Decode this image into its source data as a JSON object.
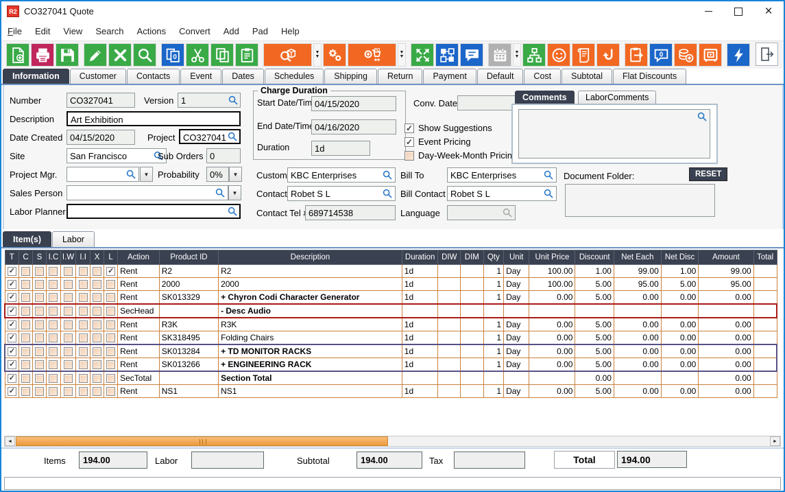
{
  "window": {
    "logo": "R2",
    "title": "CO327041 Quote"
  },
  "menu": [
    "File",
    "Edit",
    "View",
    "Search",
    "Actions",
    "Convert",
    "Add",
    "Pad",
    "Help"
  ],
  "toolbar": {
    "colors": {
      "green": "#3aaa47",
      "crimson": "#c0265c",
      "blue": "#1b66c9",
      "orange": "#f26822",
      "gray": "#b1b1b1"
    },
    "buttons": [
      {
        "icon": "new-document-icon",
        "color": "green"
      },
      {
        "icon": "print-icon",
        "color": "crimson"
      },
      {
        "icon": "save-icon",
        "color": "green"
      },
      {
        "icon": "edit-icon",
        "color": "green",
        "gap": true
      },
      {
        "icon": "delete-icon",
        "color": "green"
      },
      {
        "icon": "search-icon",
        "color": "green"
      },
      {
        "icon": "copy-count-icon",
        "color": "blue",
        "gap": true
      },
      {
        "icon": "cut-icon",
        "color": "green"
      },
      {
        "icon": "copy-icon",
        "color": "green"
      },
      {
        "icon": "paste-icon",
        "color": "green"
      },
      {
        "icon": "search-item-icon",
        "color": "orange",
        "wide": true,
        "gap": true
      },
      {
        "icon": "chevron-down-icon",
        "separator": true
      },
      {
        "icon": "gears-icon",
        "color": "orange"
      },
      {
        "icon": "add-po-cart-icon",
        "color": "orange",
        "wide": true
      },
      {
        "icon": "chevron-down-icon",
        "separator": true
      },
      {
        "icon": "expand-icon",
        "color": "green",
        "gap": true
      },
      {
        "icon": "workflow-icon",
        "color": "blue"
      },
      {
        "icon": "comment-icon",
        "color": "blue"
      },
      {
        "icon": "calendar-icon",
        "color": "gray",
        "gap": true
      },
      {
        "icon": "chevron-down-icon",
        "separator": true
      },
      {
        "icon": "org-chart-icon",
        "color": "green"
      },
      {
        "icon": "smiley-icon",
        "color": "orange"
      },
      {
        "icon": "scroll-icon",
        "color": "orange"
      },
      {
        "icon": "return-icon",
        "color": "orange"
      },
      {
        "icon": "export-icon",
        "color": "orange",
        "gap": true
      },
      {
        "icon": "quote-bubble-icon",
        "color": "blue"
      },
      {
        "icon": "coins-add-icon",
        "color": "orange"
      },
      {
        "icon": "safe-icon",
        "color": "orange"
      },
      {
        "icon": "lightning-icon",
        "color": "blue",
        "gap": true
      }
    ]
  },
  "tabs": {
    "active": "Information",
    "items": [
      "Information",
      "Customer",
      "Contacts",
      "Event",
      "Dates",
      "Schedules",
      "Shipping",
      "Return",
      "Payment",
      "Default",
      "Cost",
      "Subtotal",
      "Flat Discounts"
    ]
  },
  "form": {
    "number_label": "Number",
    "number": "CO327041",
    "version_label": "Version",
    "version": "1",
    "description_label": "Description",
    "description": "Art Exhibition",
    "date_created_label": "Date Created",
    "date_created": "04/15/2020",
    "project_label": "Project",
    "project": "CO327041",
    "site_label": "Site",
    "site": "San Francisco",
    "sub_orders_label": "Sub Orders",
    "sub_orders": "0",
    "project_mgr_label": "Project Mgr.",
    "project_mgr": "",
    "probability_label": "Probability",
    "probability": "0%",
    "sales_person_label": "Sales Person",
    "sales_person": "",
    "labor_planner_label": "Labor Planner",
    "labor_planner": "",
    "charge_duration_label": "Charge Duration",
    "start_label": "Start Date/Time",
    "start": "04/15/2020",
    "end_label": "End Date/Time",
    "end": "04/16/2020",
    "duration_label": "Duration",
    "duration": "1d",
    "conv_date_label": "Conv. Date",
    "conv_date": "",
    "checkboxes": [
      {
        "label": "Show Suggestions",
        "checked": true
      },
      {
        "label": "Event Pricing",
        "checked": true
      },
      {
        "label": "Day-Week-Month Pricing",
        "checked": false
      }
    ],
    "customer_label": "Customer",
    "customer": "KBC Enterprises",
    "bill_to_label": "Bill To",
    "bill_to": "KBC Enterprises",
    "contact_label": "Contact",
    "contact": "Robet S L",
    "bill_contact_label": "Bill Contact",
    "bill_contact": "Robet S L",
    "contact_tel_label": "Contact Tel #",
    "contact_tel": "689714538",
    "language_label": "Language",
    "language": ""
  },
  "comments": {
    "active": "Comments",
    "tabs": [
      "Comments",
      "LaborComments"
    ],
    "text": ""
  },
  "document_folder": {
    "label": "Document Folder:",
    "reset_label": "RESET",
    "path": ""
  },
  "items_panel": {
    "active": "Item(s)",
    "tabs": [
      "Item(s)",
      "Labor"
    ]
  },
  "table": {
    "check_columns": [
      "T",
      "C",
      "S",
      "I.C",
      "I.W",
      "I.I",
      "X",
      "L"
    ],
    "columns": [
      "Action",
      "Product ID",
      "Description",
      "Duration",
      "DIW",
      "DIM",
      "Qty",
      "Unit",
      "Unit Price",
      "Discount",
      "Net Each",
      "Net Disc",
      "Amount",
      "Total"
    ],
    "rows": [
      {
        "checks": [
          1,
          0,
          0,
          0,
          0,
          0,
          0,
          1
        ],
        "action": "Rent",
        "product_id": "R2",
        "description": "R2",
        "bold": false,
        "duration": "1d",
        "diw": "",
        "dim": "",
        "qty": "1",
        "unit": "Day",
        "unit_price": "100.00",
        "discount": "1.00",
        "net_each": "99.00",
        "net_disc": "1.00",
        "amount": "99.00",
        "total": "",
        "outline": ""
      },
      {
        "checks": [
          1,
          0,
          0,
          0,
          0,
          0,
          0,
          0
        ],
        "action": "Rent",
        "product_id": "2000",
        "description": "2000",
        "bold": false,
        "duration": "1d",
        "diw": "",
        "dim": "",
        "qty": "1",
        "unit": "Day",
        "unit_price": "100.00",
        "discount": "5.00",
        "net_each": "95.00",
        "net_disc": "5.00",
        "amount": "95.00",
        "total": "",
        "outline": ""
      },
      {
        "checks": [
          1,
          0,
          0,
          0,
          0,
          0,
          0,
          0
        ],
        "action": "Rent",
        "product_id": "SK013329",
        "description": "+  Chyron Codi Character Generator",
        "bold": true,
        "duration": "1d",
        "diw": "",
        "dim": "",
        "qty": "1",
        "unit": "Day",
        "unit_price": "0.00",
        "discount": "5.00",
        "net_each": "0.00",
        "net_disc": "0.00",
        "amount": "0.00",
        "total": "",
        "outline": ""
      },
      {
        "checks": [
          1,
          0,
          0,
          0,
          0,
          0,
          0,
          0
        ],
        "action": "SecHead",
        "product_id": "",
        "description": "-  Desc Audio",
        "bold": true,
        "duration": "",
        "diw": "",
        "dim": "",
        "qty": "",
        "unit": "",
        "unit_price": "",
        "discount": "",
        "net_each": "",
        "net_disc": "",
        "amount": "",
        "total": "",
        "outline": "red"
      },
      {
        "checks": [
          1,
          0,
          0,
          0,
          0,
          0,
          0,
          0
        ],
        "action": "Rent",
        "product_id": "R3K",
        "description": "R3K",
        "bold": false,
        "duration": "1d",
        "diw": "",
        "dim": "",
        "qty": "1",
        "unit": "Day",
        "unit_price": "0.00",
        "discount": "5.00",
        "net_each": "0.00",
        "net_disc": "0.00",
        "amount": "0.00",
        "total": "",
        "outline": ""
      },
      {
        "checks": [
          1,
          0,
          0,
          0,
          0,
          0,
          0,
          0
        ],
        "action": "Rent",
        "product_id": "SK318495",
        "description": "Folding Chairs",
        "bold": false,
        "duration": "1d",
        "diw": "",
        "dim": "",
        "qty": "1",
        "unit": "Day",
        "unit_price": "0.00",
        "discount": "5.00",
        "net_each": "0.00",
        "net_disc": "0.00",
        "amount": "0.00",
        "total": "",
        "outline": ""
      },
      {
        "checks": [
          1,
          0,
          0,
          0,
          0,
          0,
          0,
          0
        ],
        "action": "Rent",
        "product_id": "SK013284",
        "description": "+  TD MONITOR RACKS",
        "bold": true,
        "duration": "1d",
        "diw": "",
        "dim": "",
        "qty": "1",
        "unit": "Day",
        "unit_price": "0.00",
        "discount": "5.00",
        "net_each": "0.00",
        "net_disc": "0.00",
        "amount": "0.00",
        "total": "",
        "outline": "purple-top"
      },
      {
        "checks": [
          1,
          0,
          0,
          0,
          0,
          0,
          0,
          0
        ],
        "action": "Rent",
        "product_id": "SK013266",
        "description": "+  ENGINEERING RACK",
        "bold": true,
        "duration": "1d",
        "diw": "",
        "dim": "",
        "qty": "1",
        "unit": "Day",
        "unit_price": "0.00",
        "discount": "5.00",
        "net_each": "0.00",
        "net_disc": "0.00",
        "amount": "0.00",
        "total": "",
        "outline": "purple-bottom"
      },
      {
        "checks": [
          1,
          0,
          0,
          0,
          0,
          0,
          0,
          0
        ],
        "action": "SecTotal",
        "product_id": "",
        "description": "Section Total",
        "bold": true,
        "duration": "",
        "diw": "",
        "dim": "",
        "qty": "",
        "unit": "",
        "unit_price": "",
        "discount": "0.00",
        "net_each": "",
        "net_disc": "",
        "amount": "0.00",
        "total": "",
        "outline": ""
      },
      {
        "checks": [
          1,
          0,
          0,
          0,
          0,
          0,
          0,
          0
        ],
        "action": "Rent",
        "product_id": "NS1",
        "description": "NS1",
        "bold": false,
        "duration": "1d",
        "diw": "",
        "dim": "",
        "qty": "1",
        "unit": "Day",
        "unit_price": "0.00",
        "discount": "5.00",
        "net_each": "0.00",
        "net_disc": "0.00",
        "amount": "0.00",
        "total": "",
        "outline": ""
      }
    ]
  },
  "totals": {
    "items_label": "Items",
    "items": "194.00",
    "labor_label": "Labor",
    "labor": "",
    "subtotal_label": "Subtotal",
    "subtotal": "194.00",
    "tax_label": "Tax",
    "tax": "",
    "total_label": "Total",
    "total": "194.00"
  },
  "status": ""
}
